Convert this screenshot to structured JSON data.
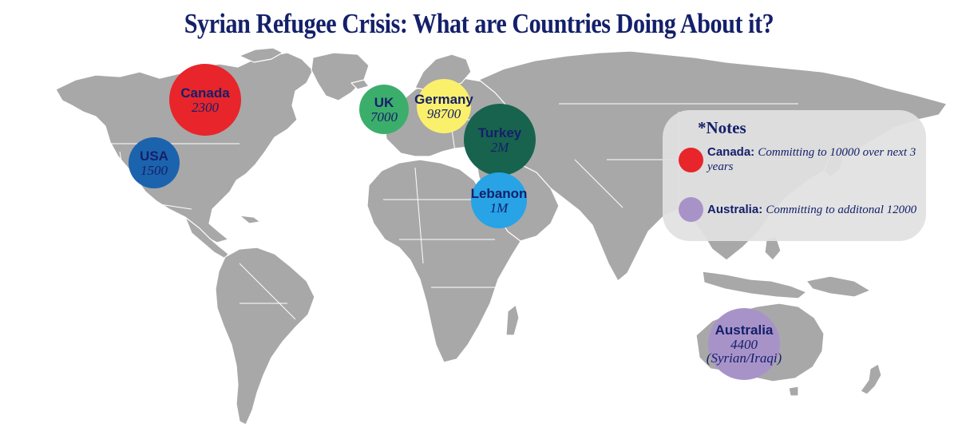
{
  "title": "Syrian Refugee Crisis: What are Countries Doing About it?",
  "colors": {
    "land": "#a8a8a8",
    "text": "#14206a",
    "canada": "#e8252b",
    "usa": "#1c63ad",
    "uk": "#3cae6b",
    "germany": "#fbf06c",
    "turkey": "#17634e",
    "lebanon": "#27a3e6",
    "australia": "#a893c8",
    "notes_panel": "#e1e1e1"
  },
  "countries": [
    {
      "key": "canada",
      "name": "Canada",
      "value": "2300"
    },
    {
      "key": "usa",
      "name": "USA",
      "value": "1500"
    },
    {
      "key": "uk",
      "name": "UK",
      "value": "7000"
    },
    {
      "key": "germany",
      "name": "Germany",
      "value": "98700"
    },
    {
      "key": "turkey",
      "name": "Turkey",
      "value": "2M"
    },
    {
      "key": "lebanon",
      "name": "Lebanon",
      "value": "1M"
    },
    {
      "key": "australia",
      "name": "Australia",
      "value": "4400",
      "sub": "(Syrian/Iraqi)"
    }
  ],
  "notes": {
    "title": "*Notes",
    "items": [
      {
        "name": "Canada:",
        "text": "Committing to 10000 over next 3 years",
        "color": "#e8252b"
      },
      {
        "name": "Australia:",
        "text": "Committing to additonal 12000",
        "color": "#a893c8"
      }
    ]
  }
}
